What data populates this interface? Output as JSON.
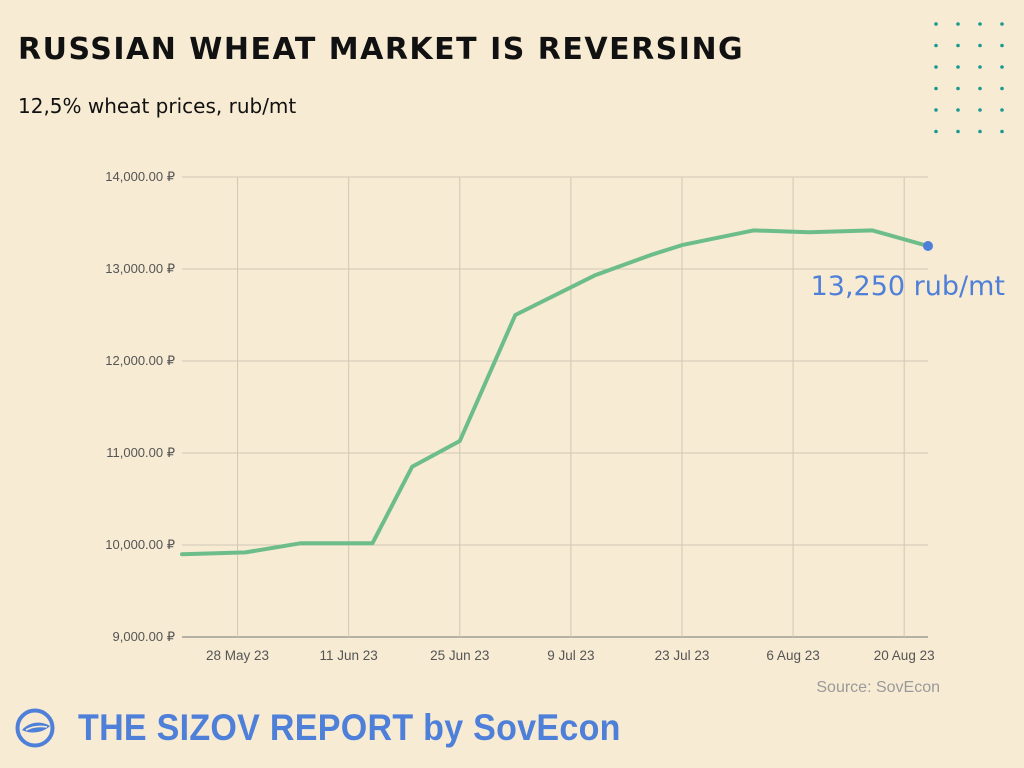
{
  "header": {
    "title": "RUSSIAN WHEAT MARKET IS REVERSING",
    "subtitle": "12,5% wheat prices, rub/mt"
  },
  "footer": {
    "brand": "THE SIZOV REPORT by SovEcon",
    "logo_icon": "sovecon-logo-icon",
    "source": "Source: SovEcon"
  },
  "colors": {
    "background": "#f7ebd3",
    "line": "#6dbd8a",
    "end_point": "#4e7fd9",
    "callout": "#4e7fd9",
    "brand": "#4e7fd9",
    "dots": "#1a9a8f"
  },
  "chart_data": {
    "type": "line",
    "x_tick_labels": [
      "28 May 23",
      "11 Jun 23",
      "25 Jun 23",
      "9 Jul 23",
      "23 Jul 23",
      "6 Aug 23",
      "20 Aug 23"
    ],
    "x_ticks": [
      "2023-05-28",
      "2023-06-11",
      "2023-06-25",
      "2023-07-09",
      "2023-07-23",
      "2023-08-06",
      "2023-08-20"
    ],
    "x_range": [
      "2023-05-21",
      "2023-08-23"
    ],
    "y_tick_labels": [
      "9,000.00 ₽",
      "10,000.00 ₽",
      "11,000.00 ₽",
      "12,000.00 ₽",
      "13,000.00 ₽",
      "14,000.00 ₽"
    ],
    "y_ticks": [
      9000,
      10000,
      11000,
      12000,
      13000,
      14000
    ],
    "ylim": [
      9000,
      14000
    ],
    "grid": true,
    "series": [
      {
        "x": [
          "2023-05-21",
          "2023-05-29",
          "2023-06-05",
          "2023-06-14",
          "2023-06-19",
          "2023-06-25",
          "2023-07-02",
          "2023-07-12",
          "2023-07-19",
          "2023-07-23",
          "2023-08-01",
          "2023-08-08",
          "2023-08-16",
          "2023-08-23"
        ],
        "y": [
          9900,
          9920,
          10020,
          10020,
          10850,
          11130,
          12500,
          12930,
          13150,
          13260,
          13420,
          13400,
          13420,
          13250
        ]
      }
    ],
    "end_point": {
      "x": "2023-08-23",
      "y": 13250
    },
    "annotation": "13,250 rub/mt"
  }
}
